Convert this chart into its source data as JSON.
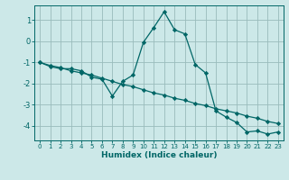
{
  "xlabel": "Humidex (Indice chaleur)",
  "ylabel": "",
  "background_color": "#cce8e8",
  "grid_color": "#99bbbb",
  "line_color": "#006666",
  "x_values": [
    0,
    1,
    2,
    3,
    4,
    5,
    6,
    7,
    8,
    9,
    10,
    11,
    12,
    13,
    14,
    15,
    16,
    17,
    18,
    19,
    20,
    21,
    22,
    23
  ],
  "y_main": [
    -1.0,
    -1.2,
    -1.3,
    -1.3,
    -1.4,
    -1.7,
    -1.8,
    -2.6,
    -1.9,
    -1.6,
    -0.05,
    0.65,
    1.4,
    0.55,
    0.35,
    -1.1,
    -1.5,
    -3.3,
    -3.6,
    -3.85,
    -4.3,
    -4.25,
    -4.4,
    -4.3
  ],
  "y_trend": [
    -1.0,
    -1.15,
    -1.25,
    -1.4,
    -1.5,
    -1.6,
    -1.75,
    -1.9,
    -2.05,
    -2.15,
    -2.3,
    -2.45,
    -2.55,
    -2.7,
    -2.8,
    -2.95,
    -3.05,
    -3.2,
    -3.3,
    -3.4,
    -3.55,
    -3.65,
    -3.8,
    -3.9
  ],
  "xlim": [
    -0.5,
    23.5
  ],
  "ylim": [
    -4.7,
    1.7
  ],
  "yticks": [
    -4,
    -3,
    -2,
    -1,
    0,
    1
  ],
  "xticks": [
    0,
    1,
    2,
    3,
    4,
    5,
    6,
    7,
    8,
    9,
    10,
    11,
    12,
    13,
    14,
    15,
    16,
    17,
    18,
    19,
    20,
    21,
    22,
    23
  ]
}
